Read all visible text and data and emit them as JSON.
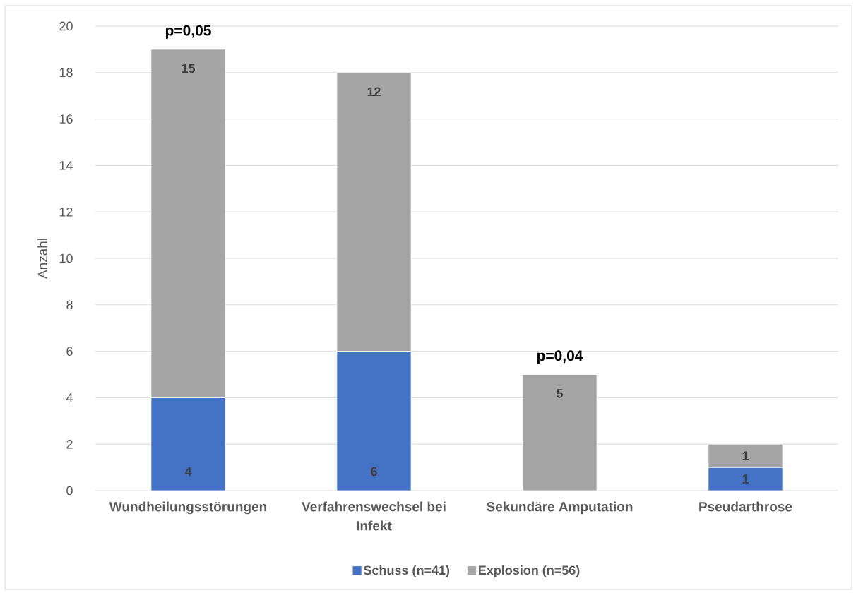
{
  "chart_data": {
    "type": "bar",
    "stacked": true,
    "categories": [
      "Wundheilungsstörungen",
      "Verfahrenswechsel bei Infekt",
      "Sekundäre Amputation",
      "Pseudarthrose"
    ],
    "series": [
      {
        "name": "Schuss (n=41)",
        "color": "#4472c4",
        "values": [
          4,
          6,
          null,
          1
        ],
        "value_labels": [
          "4",
          "6",
          null,
          "1"
        ]
      },
      {
        "name": "Explosion (n=56)",
        "color": "#a5a5a5",
        "values": [
          15,
          12,
          5,
          1
        ],
        "value_labels": [
          "15",
          "12",
          "5",
          "1"
        ]
      }
    ],
    "ylabel": "Anzahl",
    "ylim": [
      0,
      20
    ],
    "yticks": [
      0,
      2,
      4,
      6,
      8,
      10,
      12,
      14,
      16,
      18,
      20
    ],
    "grid": "y",
    "legend": "bottom",
    "annotations": [
      {
        "text": "p=0,05",
        "x": "Wundheilungsstörungen",
        "y": 19
      },
      {
        "text": "p=0,04",
        "x": "Sekundäre Amputation",
        "y": 5
      }
    ]
  }
}
